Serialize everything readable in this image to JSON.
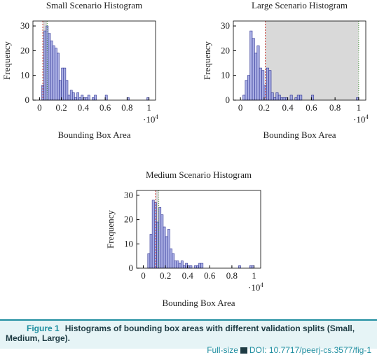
{
  "chart_data": [
    {
      "type": "histogram",
      "title": "Small Scenario Histogram",
      "x_label": "Bounding Box Area",
      "y_label": "Frequency",
      "x_multiplier": {
        "base": "·10",
        "exponent": "4"
      },
      "bins": [
        0,
        0.02,
        0.04,
        0.06,
        0.08,
        0.1,
        0.12,
        0.14,
        0.16,
        0.18,
        0.2,
        0.22,
        0.24,
        0.26,
        0.28,
        0.3,
        0.32,
        0.34,
        0.36,
        0.38,
        0.4,
        0.42,
        0.44,
        0.46,
        0.48,
        0.5,
        0.52,
        0.54,
        0.56,
        0.58,
        0.6,
        0.62,
        0.64,
        0.66,
        0.68,
        0.7,
        0.72,
        0.74,
        0.76,
        0.78,
        0.8,
        0.82,
        0.84,
        0.86,
        0.88,
        0.9,
        0.92,
        0.94,
        0.96,
        0.98,
        1
      ],
      "values": [
        0,
        6,
        28,
        30,
        27,
        24,
        22,
        21,
        19,
        8,
        13,
        13,
        8,
        2,
        4,
        3,
        1,
        3,
        1,
        2,
        1,
        1,
        2,
        0,
        1,
        2,
        0,
        0,
        0,
        0,
        2,
        0,
        0,
        0,
        0,
        0,
        0,
        0,
        0,
        0,
        1,
        0,
        0,
        0,
        0,
        0,
        0,
        0,
        0,
        1
      ],
      "color": "#8f95dc",
      "edge_color": "#2c3192",
      "highlight": [
        0.03,
        0.07
      ],
      "highlight_color": "#d9d9d9",
      "start_line_color": "#d0413b",
      "end_line_color": "#4a9a3c",
      "xlim": [
        -0.06,
        1.06
      ],
      "ylim": [
        0,
        32
      ],
      "xticks": [
        0,
        0.2,
        0.4,
        0.6,
        0.8,
        1
      ],
      "yticks": [
        0,
        10,
        20,
        30
      ]
    },
    {
      "type": "histogram",
      "title": "Large Scenario Histogram",
      "x_label": "Bounding Box Area",
      "y_label": "Frequency",
      "x_multiplier": {
        "base": "·10",
        "exponent": "4"
      },
      "bins": [
        0,
        0.02,
        0.04,
        0.06,
        0.08,
        0.1,
        0.12,
        0.14,
        0.16,
        0.18,
        0.2,
        0.22,
        0.24,
        0.26,
        0.28,
        0.3,
        0.32,
        0.34,
        0.36,
        0.38,
        0.4,
        0.42,
        0.44,
        0.46,
        0.48,
        0.5,
        0.52,
        0.54,
        0.56,
        0.58,
        0.6,
        0.62,
        0.64,
        0.66,
        0.68,
        0.7,
        0.72,
        0.74,
        0.76,
        0.78,
        0.8,
        0.82,
        0.84,
        0.86,
        0.88,
        0.9,
        0.92,
        0.94,
        0.96,
        0.98,
        1
      ],
      "values": [
        0,
        2,
        8,
        10,
        28,
        25,
        19,
        22,
        13,
        12,
        6,
        13,
        12,
        3,
        1,
        3,
        2,
        1,
        1,
        1,
        0,
        2,
        0,
        1,
        2,
        2,
        0,
        0,
        0,
        0,
        2,
        0,
        0,
        0,
        0,
        0,
        0,
        0,
        0,
        0,
        0,
        0,
        0,
        0,
        0,
        0,
        0,
        0,
        0,
        1
      ],
      "color": "#8f95dc",
      "edge_color": "#2c3192",
      "highlight": [
        0.21,
        1.0
      ],
      "highlight_color": "#d9d9d9",
      "start_line_color": "#d0413b",
      "end_line_color": "#4a9a3c",
      "xlim": [
        -0.06,
        1.06
      ],
      "ylim": [
        0,
        32
      ],
      "xticks": [
        0,
        0.2,
        0.4,
        0.6,
        0.8,
        1
      ],
      "yticks": [
        0,
        10,
        20,
        30
      ]
    },
    {
      "type": "histogram",
      "title": "Medium Scenario Histogram",
      "x_label": "Bounding Box Area",
      "y_label": "Frequency",
      "x_multiplier": {
        "base": "·10",
        "exponent": "4"
      },
      "bins": [
        0,
        0.02,
        0.04,
        0.06,
        0.08,
        0.1,
        0.12,
        0.14,
        0.16,
        0.18,
        0.2,
        0.22,
        0.24,
        0.26,
        0.28,
        0.3,
        0.32,
        0.34,
        0.36,
        0.38,
        0.4,
        0.42,
        0.44,
        0.46,
        0.48,
        0.5,
        0.52,
        0.54,
        0.56,
        0.58,
        0.6,
        0.62,
        0.64,
        0.66,
        0.68,
        0.7,
        0.72,
        0.74,
        0.76,
        0.78,
        0.8,
        0.82,
        0.84,
        0.86,
        0.88,
        0.9,
        0.92,
        0.94,
        0.96,
        0.98,
        1
      ],
      "values": [
        0,
        0,
        6,
        14,
        28,
        27,
        19,
        25,
        22,
        17,
        13,
        16,
        8,
        6,
        3,
        3,
        2,
        3,
        1,
        2,
        1,
        1,
        0,
        1,
        1,
        2,
        2,
        0,
        0,
        0,
        0,
        0,
        0,
        0,
        0,
        0,
        0,
        0,
        0,
        0,
        0,
        0,
        0,
        1,
        0,
        0,
        0,
        0,
        1,
        1
      ],
      "color": "#8f95dc",
      "edge_color": "#2c3192",
      "highlight": [
        0.11,
        0.14
      ],
      "highlight_color": "#d9d9d9",
      "start_line_color": "#d0413b",
      "end_line_color": "#4a9a3c",
      "xlim": [
        -0.06,
        1.06
      ],
      "ylim": [
        0,
        32
      ],
      "xticks": [
        0,
        0.2,
        0.4,
        0.6,
        0.8,
        1
      ],
      "yticks": [
        0,
        10,
        20,
        30
      ]
    }
  ],
  "caption": {
    "label": "Figure 1",
    "text": "Histograms of bounding box areas with different validation splits (Small, Medium, Large).",
    "link": "Full-size",
    "doi": "DOI: 10.7717/peerj-cs.3577/fig-1"
  }
}
